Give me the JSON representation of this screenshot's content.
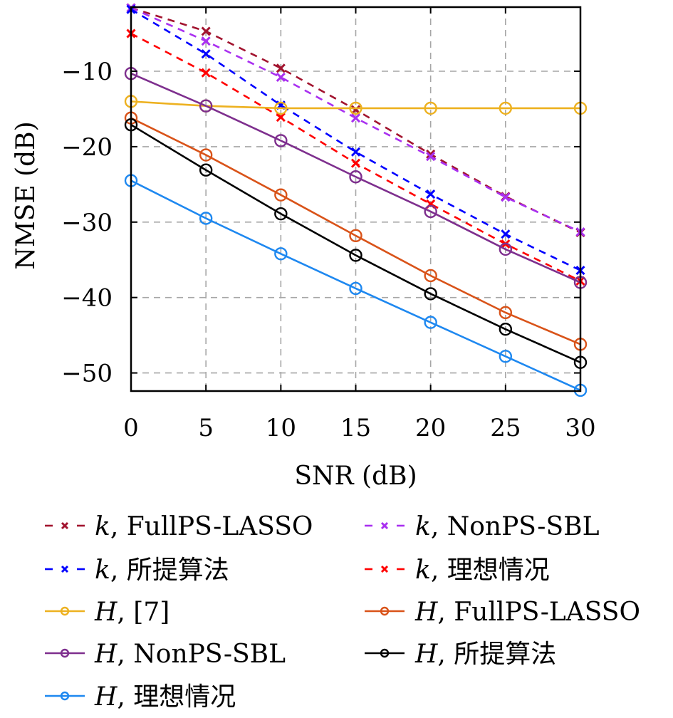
{
  "chart_data": {
    "type": "line",
    "title": "",
    "xlabel": "SNR (dB)",
    "ylabel": "NMSE (dB)",
    "xlim": [
      0,
      30
    ],
    "ylim": [
      -52.4,
      -1.5
    ],
    "grid": true,
    "x": [
      0,
      5,
      10,
      15,
      20,
      25,
      30
    ],
    "xticks": [
      "0",
      "5",
      "10",
      "15",
      "20",
      "25",
      "30"
    ],
    "yticks_values": [
      -10,
      -20,
      -30,
      -40,
      -50
    ],
    "yticks": [
      "−10",
      "−20",
      "−30",
      "−40",
      "−50"
    ],
    "legend_placement": "below",
    "series": [
      {
        "name": "k, FullPS-LASSO",
        "symbol": "k",
        "method": "FullPS-LASSO",
        "color": "#A2142F",
        "style": "dashed",
        "marker": "x",
        "values": [
          -1.6,
          -4.7,
          -9.6,
          -15.1,
          -21.0,
          -26.6,
          -31.4
        ]
      },
      {
        "name": "k, NonPS-SBL",
        "symbol": "k",
        "method": "NonPS-SBL",
        "color": "#A930F0",
        "style": "dashed",
        "marker": "x",
        "values": [
          -1.6,
          -6.0,
          -10.8,
          -16.2,
          -21.3,
          -26.7,
          -31.3
        ]
      },
      {
        "name": "k, 所提算法",
        "symbol": "k",
        "method": "所提算法",
        "color": "#0000FF",
        "style": "dashed",
        "marker": "x",
        "values": [
          -1.8,
          -7.7,
          -14.5,
          -20.7,
          -26.3,
          -31.6,
          -36.4
        ]
      },
      {
        "name": "k, 理想情况",
        "symbol": "k",
        "method": "理想情况",
        "color": "#FF0000",
        "style": "dashed",
        "marker": "x",
        "values": [
          -5.0,
          -10.2,
          -16.1,
          -22.2,
          -27.6,
          -32.9,
          -37.8
        ]
      },
      {
        "name": "H, [7]",
        "symbol": "H",
        "method": "[7]",
        "color": "#EDB120",
        "style": "solid",
        "marker": "o",
        "values": [
          -14.0,
          -14.6,
          -14.9,
          -14.9,
          -14.9,
          -14.9,
          -14.9
        ]
      },
      {
        "name": "H, FullPS-LASSO",
        "symbol": "H",
        "method": "FullPS-LASSO",
        "color": "#D95319",
        "style": "solid",
        "marker": "o",
        "values": [
          -16.2,
          -21.1,
          -26.4,
          -31.8,
          -37.1,
          -42.0,
          -46.2
        ]
      },
      {
        "name": "H, NonPS-SBL",
        "symbol": "H",
        "method": "NonPS-SBL",
        "color": "#7E2F8E",
        "style": "solid",
        "marker": "o",
        "values": [
          -10.3,
          -14.6,
          -19.2,
          -24.0,
          -28.6,
          -33.6,
          -38.0
        ]
      },
      {
        "name": "H, 所提算法",
        "symbol": "H",
        "method": "所提算法",
        "color": "#000000",
        "style": "solid",
        "marker": "o",
        "values": [
          -17.1,
          -23.1,
          -28.9,
          -34.4,
          -39.5,
          -44.2,
          -48.6
        ]
      },
      {
        "name": "H, 理想情况",
        "symbol": "H",
        "method": "理想情况",
        "color": "#1E88F0",
        "style": "solid",
        "marker": "o",
        "values": [
          -24.5,
          -29.5,
          -34.2,
          -38.8,
          -43.3,
          -47.8,
          -52.3
        ]
      }
    ]
  }
}
